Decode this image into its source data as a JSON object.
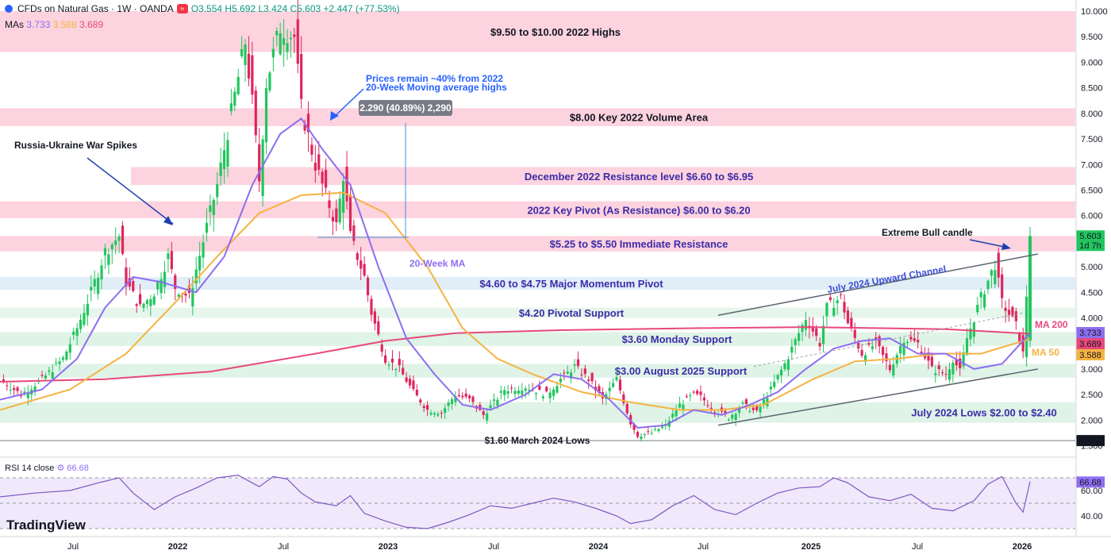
{
  "header": {
    "symbol": "CFDs on Natural Gas · 1W · OANDA",
    "badge": "≈",
    "ohlc": "O3.554  H5.692  L3.424  C5.603  +2.447 (+77.53%)"
  },
  "mas": {
    "label": "MAs",
    "v1": "3.733",
    "v2": "3.588",
    "v3": "3.689",
    "c1": "#8e6ef0",
    "c2": "#f5b342",
    "c3": "#e8487a"
  },
  "rsi": {
    "label": "RSI 14 close",
    "value": "66.68"
  },
  "logo": "TradingView",
  "chart_data": {
    "type": "line",
    "x": [
      "Jul",
      "2022",
      "Jul",
      "2023",
      "Jul",
      "2024",
      "Jul",
      "2025",
      "Jul",
      "2026"
    ],
    "ylim": [
      1.4,
      10.0
    ],
    "yticks": [
      "10.000",
      "9.500",
      "9.000",
      "8.500",
      "8.000",
      "7.500",
      "7.000",
      "6.500",
      "6.000",
      "5.500",
      "5.000",
      "4.500",
      "4.000",
      "3.500",
      "3.000",
      "2.500",
      "2.000",
      "1.500"
    ],
    "zones": [
      {
        "label": "$9.50 to $10.00 2022 Highs",
        "lo": 9.2,
        "hi": 10.0,
        "color": "#fcd3de",
        "text_color": "#131722"
      },
      {
        "label": "$8.00 Key 2022 Volume Area",
        "lo": 7.75,
        "hi": 8.1,
        "color": "#fcd3de",
        "text_color": "#131722"
      },
      {
        "label": "December 2022 Resistance level $6.60 to $6.95",
        "lo": 6.6,
        "hi": 6.95,
        "color": "#fcd3de",
        "text_color": "#3d2ba8"
      },
      {
        "label": "2022 Key Pivot (As Resistance) $6.00 to $6.20",
        "lo": 5.95,
        "hi": 6.28,
        "color": "#fcd3de",
        "text_color": "#3d2ba8"
      },
      {
        "label": "$5.25 to $5.50 Immediate Resistance",
        "lo": 5.3,
        "hi": 5.6,
        "color": "#fcd3de",
        "text_color": "#3d2ba8"
      },
      {
        "label": "$4.60 to $4.75 Major Momentum Pivot",
        "lo": 4.55,
        "hi": 4.8,
        "color": "#e1eef8",
        "text_color": "#3d2ba8"
      },
      {
        "label": "$4.20 Pivotal Support",
        "lo": 4.0,
        "hi": 4.2,
        "color": "#e6f6ec",
        "text_color": "#3d2ba8"
      },
      {
        "label": "$3.60 Monday Support",
        "lo": 3.45,
        "hi": 3.72,
        "color": "#dff3e7",
        "text_color": "#3d2ba8"
      },
      {
        "label": "$3.00 August 2025 Support",
        "lo": 2.83,
        "hi": 3.1,
        "color": "#dff3e7",
        "text_color": "#3d2ba8"
      },
      {
        "label": "July 2024 Lows $2.00 to $2.40",
        "lo": 1.95,
        "hi": 2.35,
        "color": "#dff3e7",
        "text_color": "#3d2ba8"
      }
    ],
    "march_2024_low": {
      "label": "$1.60 March 2024 Lows",
      "value": 1.6
    },
    "annotations": {
      "russia": "Russia-Ukraine War Spikes",
      "prices_note_1": "Prices remain ~40% from 2022",
      "prices_note_2": "20-Week Moving average highs",
      "measure": "2.290 (40.89%) 2,290",
      "ma20": "20-Week MA",
      "channel": "July 2024 Upward Channel",
      "bull": "Extreme Bull candle",
      "ma200": "MA 200",
      "ma50": "MA 50"
    },
    "price_tags": [
      {
        "text": "5.603",
        "sub": "1d 7h",
        "value": 5.603,
        "bg": "#22c55e",
        "fg": "#131722"
      },
      {
        "text": "3.733",
        "value": 3.733,
        "bg": "#8e6ef0",
        "fg": "#ffffff"
      },
      {
        "text": "3.689",
        "value": 3.689,
        "bg": "#e8487a",
        "fg": "#ffffff"
      },
      {
        "text": "3.588",
        "value": 3.588,
        "bg": "#f5b342",
        "fg": "#131722"
      },
      {
        "text": "1.600",
        "value": 1.6,
        "bg": "#131722",
        "fg": "#ffffff"
      }
    ],
    "ma20": [
      [
        0,
        2.4
      ],
      [
        12,
        2.6
      ],
      [
        22,
        3.2
      ],
      [
        30,
        4.2
      ],
      [
        38,
        4.8
      ],
      [
        46,
        4.7
      ],
      [
        56,
        4.5
      ],
      [
        64,
        5.2
      ],
      [
        72,
        6.6
      ],
      [
        80,
        7.6
      ],
      [
        86,
        7.9
      ],
      [
        92,
        7.3
      ],
      [
        100,
        6.6
      ],
      [
        108,
        5.0
      ],
      [
        116,
        3.6
      ],
      [
        124,
        2.9
      ],
      [
        132,
        2.3
      ],
      [
        140,
        2.2
      ],
      [
        150,
        2.5
      ],
      [
        158,
        2.9
      ],
      [
        166,
        2.8
      ],
      [
        174,
        2.4
      ],
      [
        182,
        1.85
      ],
      [
        190,
        1.9
      ],
      [
        198,
        2.2
      ],
      [
        206,
        2.1
      ],
      [
        214,
        2.3
      ],
      [
        222,
        2.55
      ],
      [
        230,
        3.0
      ],
      [
        238,
        3.4
      ],
      [
        246,
        3.55
      ],
      [
        254,
        3.6
      ],
      [
        262,
        3.3
      ],
      [
        270,
        3.3
      ],
      [
        278,
        3.0
      ],
      [
        286,
        3.1
      ],
      [
        294,
        3.7
      ]
    ],
    "ma50": [
      [
        0,
        2.2
      ],
      [
        20,
        2.6
      ],
      [
        36,
        3.3
      ],
      [
        50,
        4.3
      ],
      [
        62,
        5.2
      ],
      [
        74,
        6.05
      ],
      [
        86,
        6.4
      ],
      [
        98,
        6.45
      ],
      [
        110,
        6.05
      ],
      [
        122,
        5.0
      ],
      [
        132,
        3.8
      ],
      [
        142,
        3.2
      ],
      [
        152,
        2.9
      ],
      [
        166,
        2.55
      ],
      [
        180,
        2.35
      ],
      [
        194,
        2.2
      ],
      [
        206,
        2.2
      ],
      [
        218,
        2.3
      ],
      [
        232,
        2.8
      ],
      [
        244,
        3.15
      ],
      [
        256,
        3.2
      ],
      [
        268,
        3.3
      ],
      [
        280,
        3.3
      ],
      [
        294,
        3.59
      ]
    ],
    "ma200": [
      [
        0,
        2.75
      ],
      [
        30,
        2.8
      ],
      [
        60,
        2.95
      ],
      [
        90,
        3.3
      ],
      [
        110,
        3.55
      ],
      [
        130,
        3.7
      ],
      [
        160,
        3.76
      ],
      [
        200,
        3.8
      ],
      [
        230,
        3.82
      ],
      [
        250,
        3.8
      ],
      [
        270,
        3.78
      ],
      [
        294,
        3.69
      ]
    ],
    "price": [
      [
        0,
        2.8
      ],
      [
        6,
        2.5
      ],
      [
        12,
        2.8
      ],
      [
        18,
        3.2
      ],
      [
        22,
        3.8
      ],
      [
        26,
        4.5
      ],
      [
        30,
        5.3
      ],
      [
        34,
        5.6
      ],
      [
        36,
        4.7
      ],
      [
        40,
        4.2
      ],
      [
        44,
        4.5
      ],
      [
        48,
        5.2
      ],
      [
        50,
        4.6
      ],
      [
        54,
        4.4
      ],
      [
        58,
        5.5
      ],
      [
        62,
        6.6
      ],
      [
        66,
        8.0
      ],
      [
        70,
        9.4
      ],
      [
        72,
        8.2
      ],
      [
        74,
        6.7
      ],
      [
        76,
        8.6
      ],
      [
        80,
        9.7
      ],
      [
        84,
        9.5
      ],
      [
        86,
        8.1
      ],
      [
        90,
        7.0
      ],
      [
        94,
        6.2
      ],
      [
        96,
        5.8
      ],
      [
        98,
        6.8
      ],
      [
        100,
        5.6
      ],
      [
        104,
        4.8
      ],
      [
        106,
        4.1
      ],
      [
        110,
        3.2
      ],
      [
        114,
        3.0
      ],
      [
        118,
        2.55
      ],
      [
        122,
        2.2
      ],
      [
        126,
        2.15
      ],
      [
        130,
        2.5
      ],
      [
        134,
        2.4
      ],
      [
        138,
        2.1
      ],
      [
        144,
        2.6
      ],
      [
        150,
        2.65
      ],
      [
        156,
        2.5
      ],
      [
        160,
        2.8
      ],
      [
        164,
        3.05
      ],
      [
        168,
        2.8
      ],
      [
        172,
        2.4
      ],
      [
        176,
        2.8
      ],
      [
        180,
        1.95
      ],
      [
        182,
        1.7
      ],
      [
        186,
        1.75
      ],
      [
        190,
        1.9
      ],
      [
        194,
        2.3
      ],
      [
        198,
        2.5
      ],
      [
        200,
        2.45
      ],
      [
        204,
        2.2
      ],
      [
        208,
        2.05
      ],
      [
        212,
        2.3
      ],
      [
        216,
        2.15
      ],
      [
        220,
        2.6
      ],
      [
        224,
        3.1
      ],
      [
        226,
        3.4
      ],
      [
        230,
        4.0
      ],
      [
        234,
        3.5
      ],
      [
        236,
        4.2
      ],
      [
        240,
        4.4
      ],
      [
        242,
        3.9
      ],
      [
        246,
        3.3
      ],
      [
        250,
        3.5
      ],
      [
        254,
        3.0
      ],
      [
        258,
        3.6
      ],
      [
        262,
        3.5
      ],
      [
        266,
        3.0
      ],
      [
        270,
        2.9
      ],
      [
        272,
        3.2
      ],
      [
        274,
        2.95
      ],
      [
        276,
        3.6
      ],
      [
        280,
        4.4
      ],
      [
        284,
        5.05
      ],
      [
        286,
        4.3
      ],
      [
        290,
        3.85
      ],
      [
        292,
        3.3
      ],
      [
        294,
        5.6
      ]
    ],
    "rsi_values": [
      [
        0,
        55
      ],
      [
        10,
        58
      ],
      [
        20,
        60
      ],
      [
        28,
        66
      ],
      [
        34,
        70
      ],
      [
        38,
        58
      ],
      [
        44,
        45
      ],
      [
        50,
        55
      ],
      [
        56,
        62
      ],
      [
        62,
        70
      ],
      [
        68,
        72
      ],
      [
        74,
        63
      ],
      [
        78,
        71
      ],
      [
        82,
        69
      ],
      [
        86,
        58
      ],
      [
        90,
        51
      ],
      [
        96,
        48
      ],
      [
        100,
        56
      ],
      [
        104,
        42
      ],
      [
        110,
        36
      ],
      [
        116,
        31
      ],
      [
        122,
        30
      ],
      [
        128,
        35
      ],
      [
        134,
        41
      ],
      [
        140,
        48
      ],
      [
        146,
        46
      ],
      [
        152,
        50
      ],
      [
        158,
        54
      ],
      [
        164,
        51
      ],
      [
        170,
        46
      ],
      [
        176,
        40
      ],
      [
        180,
        34
      ],
      [
        186,
        37
      ],
      [
        192,
        48
      ],
      [
        198,
        56
      ],
      [
        204,
        45
      ],
      [
        210,
        41
      ],
      [
        216,
        50
      ],
      [
        222,
        58
      ],
      [
        228,
        62
      ],
      [
        234,
        63
      ],
      [
        238,
        70
      ],
      [
        242,
        66
      ],
      [
        248,
        55
      ],
      [
        254,
        52
      ],
      [
        260,
        57
      ],
      [
        266,
        46
      ],
      [
        272,
        44
      ],
      [
        278,
        52
      ],
      [
        282,
        65
      ],
      [
        286,
        71
      ],
      [
        290,
        50
      ],
      [
        292,
        43
      ],
      [
        294,
        67
      ]
    ]
  }
}
